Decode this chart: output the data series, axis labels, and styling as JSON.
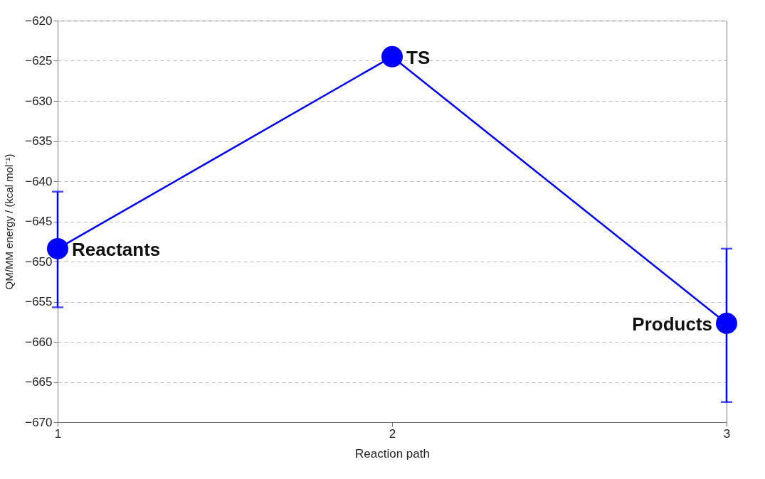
{
  "chart_data": {
    "type": "line",
    "xlabel": "Reaction path",
    "ylabel": "QM/MM energy / (kcal mol⁻¹)",
    "x": [
      1,
      2,
      3
    ],
    "series": [
      {
        "color": "#0000ff",
        "values": [
          -648.4,
          -624.5,
          -657.7
        ],
        "errors": [
          [
            -655.7,
            -641.3
          ],
          null,
          [
            -667.5,
            -648.4
          ]
        ]
      }
    ],
    "xlim": [
      1,
      3
    ],
    "xticks": [
      1,
      2,
      3
    ],
    "ylim": [
      -670,
      -620
    ],
    "yticks": [
      -670,
      -665,
      -660,
      -655,
      -650,
      -645,
      -640,
      -635,
      -630,
      -625,
      -620
    ],
    "grid": "y",
    "marker": "circle",
    "line_style": "solid",
    "annotations": [
      {
        "text": "Reactants",
        "x": 1,
        "y": -648.4
      },
      {
        "text": "TS",
        "x": 2,
        "y": -624.5
      },
      {
        "text": "Products",
        "x": 3,
        "y": -657.7
      }
    ]
  }
}
